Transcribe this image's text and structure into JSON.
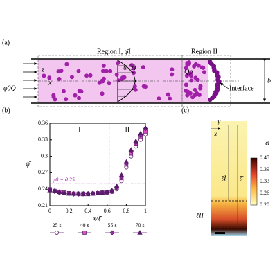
{
  "panel_a": {
    "label": "(a)",
    "region1": "Region I, φ̄I",
    "region2": "Region II",
    "velocity": "u (z)",
    "flux": "φ0Q",
    "pore_flux": "Qp",
    "interface": "Interface",
    "width": "b",
    "z_axis": "z",
    "x_axis": "x"
  },
  "chart_data": {
    "type": "scatter",
    "panel": "(b)",
    "xlabel": "x/ℓ̄",
    "ylabel": "φ̄",
    "x": [
      0,
      0.05,
      0.1,
      0.15,
      0.2,
      0.25,
      0.3,
      0.35,
      0.4,
      0.45,
      0.5,
      0.55,
      0.6,
      0.65,
      0.7,
      0.75,
      0.8,
      0.85,
      0.9,
      0.95,
      1
    ],
    "series": [
      {
        "name": "25 s",
        "color": "#ffffff",
        "marker": "circle",
        "values": [
          0.238,
          0.236,
          0.234,
          0.233,
          0.232,
          0.232,
          0.231,
          0.231,
          0.232,
          0.232,
          0.233,
          0.233,
          0.234,
          0.235,
          0.24,
          0.255,
          0.28,
          0.3,
          0.318,
          0.33,
          0.34
        ]
      },
      {
        "name": "40 s",
        "color": "#e44fc8",
        "marker": "square",
        "values": [
          0.24,
          0.237,
          0.235,
          0.234,
          0.233,
          0.232,
          0.232,
          0.232,
          0.231,
          0.232,
          0.233,
          0.234,
          0.234,
          0.236,
          0.242,
          0.26,
          0.285,
          0.305,
          0.322,
          0.335,
          0.345
        ]
      },
      {
        "name": "55 s",
        "color": "#9b30a8",
        "marker": "diamond",
        "values": [
          0.239,
          0.236,
          0.234,
          0.233,
          0.232,
          0.231,
          0.231,
          0.232,
          0.232,
          0.233,
          0.233,
          0.234,
          0.235,
          0.237,
          0.244,
          0.263,
          0.288,
          0.31,
          0.325,
          0.338,
          0.35
        ]
      },
      {
        "name": "70 s",
        "color": "#5a1a6a",
        "marker": "triangle",
        "values": [
          0.238,
          0.237,
          0.235,
          0.233,
          0.232,
          0.232,
          0.232,
          0.231,
          0.232,
          0.232,
          0.233,
          0.233,
          0.235,
          0.238,
          0.246,
          0.266,
          0.29,
          0.312,
          0.328,
          0.342,
          0.352
        ]
      }
    ],
    "xlim": [
      0,
      1
    ],
    "xticks": [
      0,
      0.2,
      0.4,
      0.6,
      0.8,
      1
    ],
    "ylim": [
      0.21,
      0.36
    ],
    "yticks": [
      0.21,
      0.24,
      0.27,
      0.3,
      0.33,
      0.36
    ],
    "reference": {
      "value": 0.25,
      "label": "φ0 = 0.25"
    },
    "divider": 0.62,
    "region_labels": [
      "I",
      "II"
    ]
  },
  "panel_c": {
    "label": "(c)",
    "y_axis": "y",
    "x_axis": "x",
    "l1": "ℓI",
    "lbar": "ℓ̄",
    "l2": "ℓII",
    "colorbar_title": "φ̄",
    "colorbar_ticks": [
      "0.45",
      "0.39",
      "0.33",
      "0.26",
      "0.20"
    ]
  }
}
